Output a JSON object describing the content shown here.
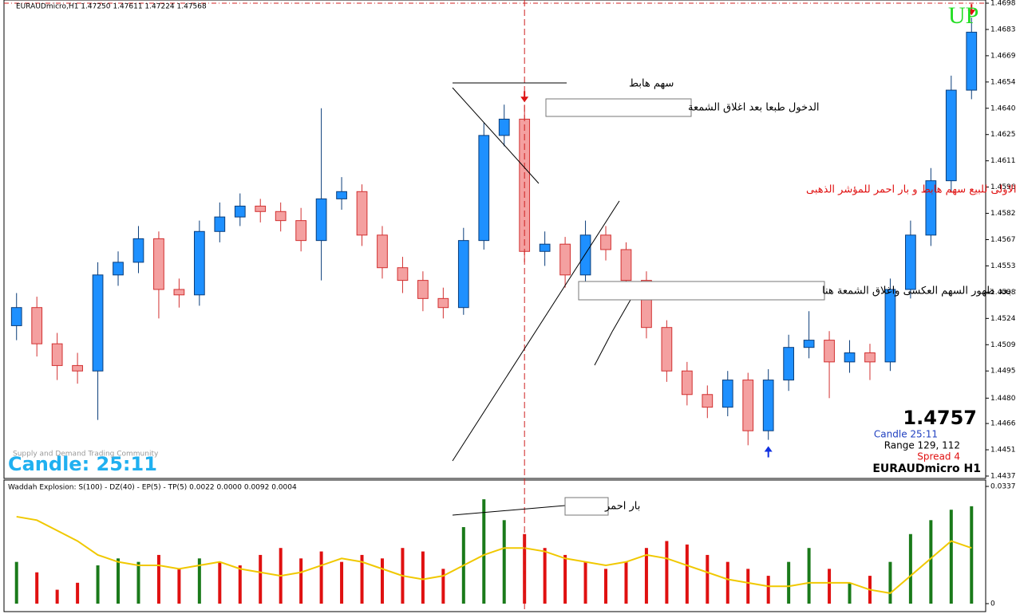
{
  "header": {
    "title": "EURAUDmicro,H1  1.47250 1.47611 1.47224 1.47568"
  },
  "chart_data": {
    "type": "candlestick",
    "bull_color": "#1e90ff",
    "bear_color": "#f4a0a0",
    "bull_edge": "#0a3d7a",
    "bear_edge": "#d23030",
    "ylim": [
      1.4437,
      1.4698
    ],
    "yticks": [
      {
        "value": 1.4698,
        "label": "1.46980"
      },
      {
        "value": 1.46835,
        "label": "1.46835"
      },
      {
        "value": 1.4669,
        "label": "1.46690"
      },
      {
        "value": 1.46545,
        "label": "1.46545"
      },
      {
        "value": 1.464,
        "label": "1.46400"
      },
      {
        "value": 1.46255,
        "label": "1.46255"
      },
      {
        "value": 1.4611,
        "label": "1.46110"
      },
      {
        "value": 1.45965,
        "label": "1.45965"
      },
      {
        "value": 1.4582,
        "label": "1.45820"
      },
      {
        "value": 1.45675,
        "label": "1.45675"
      },
      {
        "value": 1.4553,
        "label": "1.45530"
      },
      {
        "value": 1.45385,
        "label": "1.45385"
      },
      {
        "value": 1.4524,
        "label": "1.45240"
      },
      {
        "value": 1.45095,
        "label": "1.45095"
      },
      {
        "value": 1.4495,
        "label": "1.44950"
      },
      {
        "value": 1.448,
        "label": "1.44800"
      },
      {
        "value": 1.4466,
        "label": "1.44660"
      },
      {
        "value": 1.44515,
        "label": "1.44515"
      },
      {
        "value": 1.4437,
        "label": "1.44370"
      }
    ],
    "open": [
      1.452,
      1.453,
      1.451,
      1.4498,
      1.4495,
      1.4548,
      1.4555,
      1.4568,
      1.454,
      1.4537,
      1.4572,
      1.458,
      1.4586,
      1.4583,
      1.4578,
      1.4567,
      1.459,
      1.4594,
      1.457,
      1.4552,
      1.4545,
      1.4535,
      1.453,
      1.4567,
      1.4625,
      1.4634,
      1.4561,
      1.4565,
      1.4548,
      1.457,
      1.4562,
      1.4545,
      1.4519,
      1.4495,
      1.4482,
      1.4475,
      1.449,
      1.4462,
      1.449,
      1.4508,
      1.4512,
      1.45,
      1.4505,
      1.45,
      1.454,
      1.457,
      1.46,
      1.465
    ],
    "high": [
      1.4538,
      1.4536,
      1.4516,
      1.4505,
      1.4555,
      1.4561,
      1.4575,
      1.4572,
      1.4546,
      1.4578,
      1.4588,
      1.4593,
      1.459,
      1.4588,
      1.4585,
      1.464,
      1.4602,
      1.4598,
      1.4575,
      1.4558,
      1.455,
      1.4541,
      1.4574,
      1.4632,
      1.4642,
      1.4642,
      1.4572,
      1.4569,
      1.4578,
      1.4575,
      1.4566,
      1.455,
      1.4523,
      1.45,
      1.4487,
      1.4495,
      1.4494,
      1.4496,
      1.4515,
      1.4528,
      1.4517,
      1.4512,
      1.451,
      1.4546,
      1.4578,
      1.4607,
      1.4658,
      1.469
    ],
    "low": [
      1.4512,
      1.4503,
      1.449,
      1.4488,
      1.4468,
      1.4542,
      1.4549,
      1.4524,
      1.453,
      1.4531,
      1.4566,
      1.4575,
      1.4577,
      1.4572,
      1.4561,
      1.4545,
      1.4584,
      1.4564,
      1.4546,
      1.4538,
      1.4528,
      1.4524,
      1.4526,
      1.4562,
      1.4619,
      1.4555,
      1.4553,
      1.4541,
      1.4543,
      1.4556,
      1.4538,
      1.4513,
      1.4489,
      1.4476,
      1.4469,
      1.447,
      1.4454,
      1.4457,
      1.4484,
      1.4502,
      1.448,
      1.4494,
      1.449,
      1.4495,
      1.4535,
      1.4564,
      1.4594,
      1.4645
    ],
    "close": [
      1.453,
      1.451,
      1.4498,
      1.4495,
      1.4548,
      1.4555,
      1.4568,
      1.454,
      1.4537,
      1.4572,
      1.458,
      1.4586,
      1.4583,
      1.4578,
      1.4567,
      1.459,
      1.4594,
      1.457,
      1.4552,
      1.4545,
      1.4535,
      1.453,
      1.4567,
      1.4625,
      1.4634,
      1.4561,
      1.4565,
      1.4548,
      1.457,
      1.4562,
      1.4545,
      1.4519,
      1.4495,
      1.4482,
      1.4475,
      1.449,
      1.4462,
      1.449,
      1.4508,
      1.4512,
      1.45,
      1.4505,
      1.45,
      1.454,
      1.457,
      1.46,
      1.465,
      1.4682
    ],
    "indicator": {
      "title": "Waddah Explosion: S(100) - DZ(40) - EP(5) - TP(5) 0.0022 0.0000 0.0092 0.0004",
      "ylim": [
        0,
        0.0337
      ],
      "yticks": [
        0.0337,
        0
      ],
      "bar_values": [
        0.012,
        0.009,
        0.004,
        0.006,
        0.011,
        0.013,
        0.012,
        0.014,
        0.01,
        0.013,
        0.012,
        0.011,
        0.014,
        0.016,
        0.013,
        0.015,
        0.012,
        0.014,
        0.013,
        0.016,
        0.015,
        0.01,
        0.022,
        0.03,
        0.024,
        0.02,
        0.016,
        0.014,
        0.012,
        0.01,
        0.012,
        0.016,
        0.018,
        0.017,
        0.014,
        0.012,
        0.01,
        0.008,
        0.012,
        0.016,
        0.01,
        0.006,
        0.008,
        0.012,
        0.02,
        0.024,
        0.027,
        0.028
      ],
      "bar_colors": [
        "#1a7a1a",
        "#e01010",
        "#e01010",
        "#e01010",
        "#1a7a1a",
        "#1a7a1a",
        "#1a7a1a",
        "#e01010",
        "#e01010",
        "#1a7a1a",
        "#e01010",
        "#e01010",
        "#e01010",
        "#e01010",
        "#e01010",
        "#e01010",
        "#e01010",
        "#e01010",
        "#e01010",
        "#e01010",
        "#e01010",
        "#e01010",
        "#1a7a1a",
        "#1a7a1a",
        "#1a7a1a",
        "#e01010",
        "#e01010",
        "#e01010",
        "#e01010",
        "#e01010",
        "#e01010",
        "#e01010",
        "#e01010",
        "#e01010",
        "#e01010",
        "#e01010",
        "#e01010",
        "#e01010",
        "#1a7a1a",
        "#1a7a1a",
        "#e01010",
        "#1a7a1a",
        "#e01010",
        "#1a7a1a",
        "#1a7a1a",
        "#1a7a1a",
        "#1a7a1a",
        "#1a7a1a"
      ],
      "line_color": "#f0c800",
      "line_values": [
        0.025,
        0.024,
        0.021,
        0.018,
        0.014,
        0.012,
        0.011,
        0.011,
        0.01,
        0.011,
        0.012,
        0.01,
        0.009,
        0.008,
        0.009,
        0.011,
        0.013,
        0.012,
        0.01,
        0.008,
        0.007,
        0.008,
        0.011,
        0.014,
        0.016,
        0.016,
        0.015,
        0.013,
        0.012,
        0.011,
        0.012,
        0.014,
        0.013,
        0.011,
        0.009,
        0.007,
        0.006,
        0.005,
        0.005,
        0.006,
        0.006,
        0.006,
        0.004,
        0.003,
        0.008,
        0.013,
        0.018,
        0.016
      ]
    }
  },
  "annotations": {
    "down_arrow": "سهم هابط",
    "entry": "الدخول طبعا بعد اغلاق الشمعة",
    "case": "الحالة الاولى  للبيع  سهم هابط و بار احمر للمؤشر الذهبى",
    "exit": "الخروج بعد ظهور السهم العكسى واغلاق الشمعة هنا",
    "red_bar": "بار احمر",
    "up": "UP"
  },
  "info": {
    "price": "1.4757",
    "candle": "Candle  25:11",
    "range": "Range   129, 112",
    "spread": "Spread  4",
    "symbol": "EURAUDmicro  H1",
    "big_candle": "Candle:  25:11",
    "watermark": "Supply and Demand Trading Community"
  }
}
